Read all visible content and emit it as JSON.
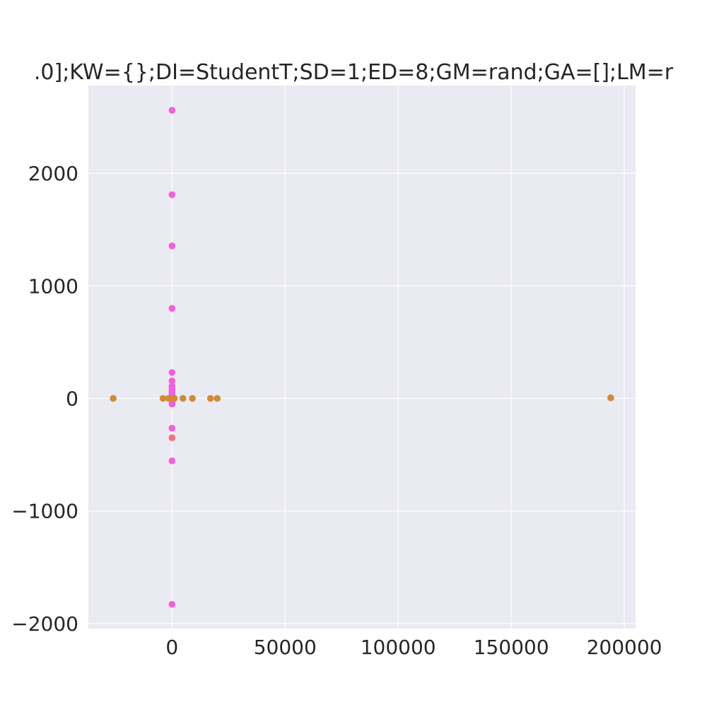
{
  "chart_data": {
    "type": "scatter",
    "title": ".0];KW={};DI=StudentT;SD=1;ED=8;GM=rand;GA=[];LM=r",
    "xlabel": "",
    "ylabel": "",
    "xlim": [
      -37000,
      205000
    ],
    "ylim": [
      -2045,
      2780
    ],
    "grid": true,
    "background_color": "#eaeaf2",
    "grid_color": "#ffffff",
    "x_ticks": [
      {
        "value": 0,
        "label": "0"
      },
      {
        "value": 50000,
        "label": "50000"
      },
      {
        "value": 100000,
        "label": "100000"
      },
      {
        "value": 150000,
        "label": "150000"
      },
      {
        "value": 200000,
        "label": "200000"
      }
    ],
    "y_ticks": [
      {
        "value": -2000,
        "label": "−2000"
      },
      {
        "value": -1000,
        "label": "−1000"
      },
      {
        "value": 0,
        "label": "0"
      },
      {
        "value": 1000,
        "label": "1000"
      },
      {
        "value": 2000,
        "label": "2000"
      }
    ],
    "series": [
      {
        "color": "#f060e0",
        "x": [
          0,
          0,
          0,
          0,
          0,
          0,
          0,
          0,
          0,
          0,
          0,
          0,
          0,
          0,
          0,
          0,
          0,
          0
        ],
        "y": [
          2560,
          1810,
          1355,
          800,
          230,
          155,
          110,
          85,
          60,
          35,
          15,
          5,
          -10,
          -25,
          -50,
          -265,
          -555,
          -1830
        ]
      },
      {
        "color": "#d08a38",
        "x": [
          -26000,
          -4000,
          -1500,
          1000,
          4800,
          9000,
          17000,
          20000,
          194000
        ],
        "y": [
          0,
          0,
          0,
          0,
          0,
          0,
          0,
          0,
          5
        ]
      },
      {
        "color": "#f87080",
        "x": [
          0
        ],
        "y": [
          -350
        ]
      }
    ]
  }
}
